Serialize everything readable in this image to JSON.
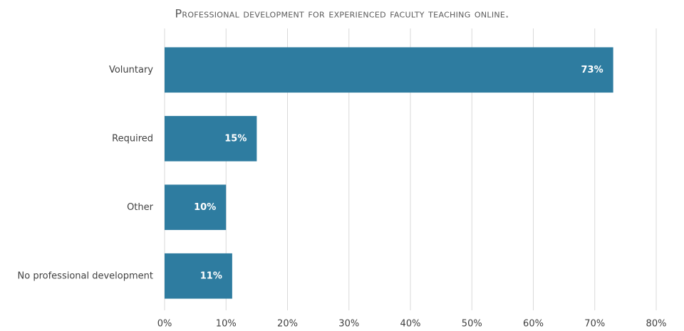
{
  "chart_data": {
    "type": "hbar",
    "title": "Professional development for experienced faculty teaching online.",
    "categories": [
      "Voluntary",
      "Required",
      "Other",
      "No professional development"
    ],
    "values": [
      73,
      15,
      10,
      11
    ],
    "value_labels": [
      "73%",
      "15%",
      "10%",
      "11%"
    ],
    "color": "#2e7ca0",
    "xlim": [
      0,
      80
    ],
    "xticks": [
      {
        "value": 0,
        "label": "0%"
      },
      {
        "value": 10,
        "label": "10%"
      },
      {
        "value": 20,
        "label": "20%"
      },
      {
        "value": 30,
        "label": "30%"
      },
      {
        "value": 40,
        "label": "40%"
      },
      {
        "value": 50,
        "label": "50%"
      },
      {
        "value": 60,
        "label": "60%"
      },
      {
        "value": 70,
        "label": "70%"
      },
      {
        "value": 80,
        "label": "80%"
      }
    ],
    "grid": true
  }
}
